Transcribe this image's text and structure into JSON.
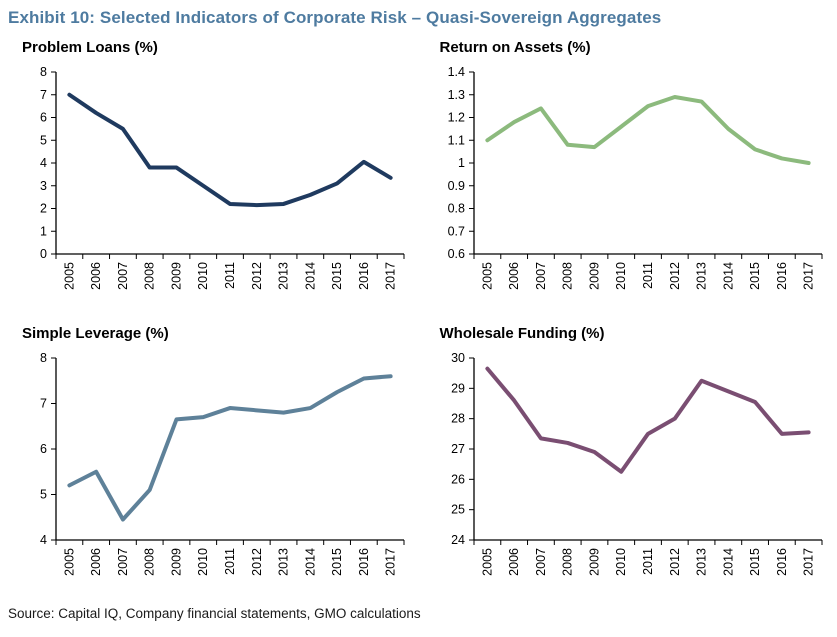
{
  "page": {
    "title": "Exhibit 10: Selected Indicators of Corporate Risk – Quasi-Sovereign Aggregates",
    "title_color": "#4E7BA0",
    "source": "Source: Capital IQ, Company financial statements, GMO calculations"
  },
  "chart_data": [
    {
      "type": "line",
      "title": "Problem Loans (%)",
      "color": "#1F3A5F",
      "ylim": [
        0,
        8
      ],
      "ystep": 1,
      "categories": [
        "2005",
        "2006",
        "2007",
        "2008",
        "2009",
        "2010",
        "2011",
        "2012",
        "2013",
        "2014",
        "2015",
        "2016",
        "2017"
      ],
      "values": [
        7.0,
        6.2,
        5.5,
        3.8,
        3.8,
        3.0,
        2.2,
        2.15,
        2.2,
        2.6,
        3.1,
        4.05,
        3.35
      ]
    },
    {
      "type": "line",
      "title": "Return on Assets (%)",
      "color": "#8CBA7D",
      "ylim": [
        0.6,
        1.4
      ],
      "ystep": 0.1,
      "categories": [
        "2005",
        "2006",
        "2007",
        "2008",
        "2009",
        "2010",
        "2011",
        "2012",
        "2013",
        "2014",
        "2015",
        "2016",
        "2017"
      ],
      "values": [
        1.1,
        1.18,
        1.24,
        1.08,
        1.07,
        1.16,
        1.25,
        1.29,
        1.27,
        1.15,
        1.06,
        1.02,
        1.0
      ]
    },
    {
      "type": "line",
      "title": "Simple Leverage (%)",
      "color": "#5E8199",
      "ylim": [
        4,
        8
      ],
      "ystep": 1,
      "categories": [
        "2005",
        "2006",
        "2007",
        "2008",
        "2009",
        "2010",
        "2011",
        "2012",
        "2013",
        "2014",
        "2015",
        "2016",
        "2017"
      ],
      "values": [
        5.2,
        5.5,
        4.45,
        5.1,
        6.65,
        6.7,
        6.9,
        6.85,
        6.8,
        6.9,
        7.25,
        7.55,
        7.6
      ]
    },
    {
      "type": "line",
      "title": "Wholesale Funding (%)",
      "color": "#7A4E72",
      "ylim": [
        24,
        30
      ],
      "ystep": 1,
      "categories": [
        "2005",
        "2006",
        "2007",
        "2008",
        "2009",
        "2010",
        "2011",
        "2012",
        "2013",
        "2014",
        "2015",
        "2016",
        "2017"
      ],
      "values": [
        29.65,
        28.6,
        27.35,
        27.2,
        26.9,
        26.25,
        27.5,
        28.0,
        29.25,
        28.9,
        28.55,
        27.5,
        27.55
      ]
    }
  ]
}
